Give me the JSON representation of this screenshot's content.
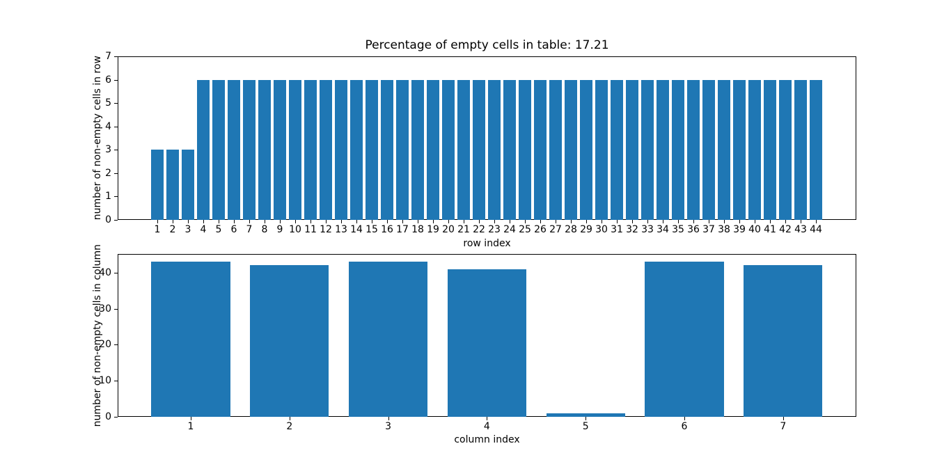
{
  "figure": {
    "background": "#ffffff",
    "bar_color": "#1f77b4",
    "axis_color": "#000000"
  },
  "chart_data": [
    {
      "type": "bar",
      "title": "Percentage of empty cells in table: 17.21",
      "xlabel": "row index",
      "ylabel": "number of non-empty cells in row",
      "categories": [
        1,
        2,
        3,
        4,
        5,
        6,
        7,
        8,
        9,
        10,
        11,
        12,
        13,
        14,
        15,
        16,
        17,
        18,
        19,
        20,
        21,
        22,
        23,
        24,
        25,
        26,
        27,
        28,
        29,
        30,
        31,
        32,
        33,
        34,
        35,
        36,
        37,
        38,
        39,
        40,
        41,
        42,
        43,
        44
      ],
      "values": [
        3,
        3,
        3,
        6,
        6,
        6,
        6,
        6,
        6,
        6,
        6,
        6,
        6,
        6,
        6,
        6,
        6,
        6,
        6,
        6,
        6,
        6,
        6,
        6,
        6,
        6,
        6,
        6,
        6,
        6,
        6,
        6,
        6,
        6,
        6,
        6,
        6,
        6,
        6,
        6,
        6,
        6,
        6,
        6
      ],
      "yticks": [
        0,
        1,
        2,
        3,
        4,
        5,
        6,
        7
      ],
      "ylim": [
        0,
        7
      ],
      "grid": false,
      "legend": null
    },
    {
      "type": "bar",
      "title": "",
      "xlabel": "column index",
      "ylabel": "number of non-empty cells in column",
      "categories": [
        1,
        2,
        3,
        4,
        5,
        6,
        7
      ],
      "values": [
        43,
        42,
        43,
        41,
        1,
        43,
        42
      ],
      "yticks": [
        0,
        10,
        20,
        30,
        40
      ],
      "ylim": [
        0,
        45.15
      ],
      "grid": false,
      "legend": null
    }
  ]
}
